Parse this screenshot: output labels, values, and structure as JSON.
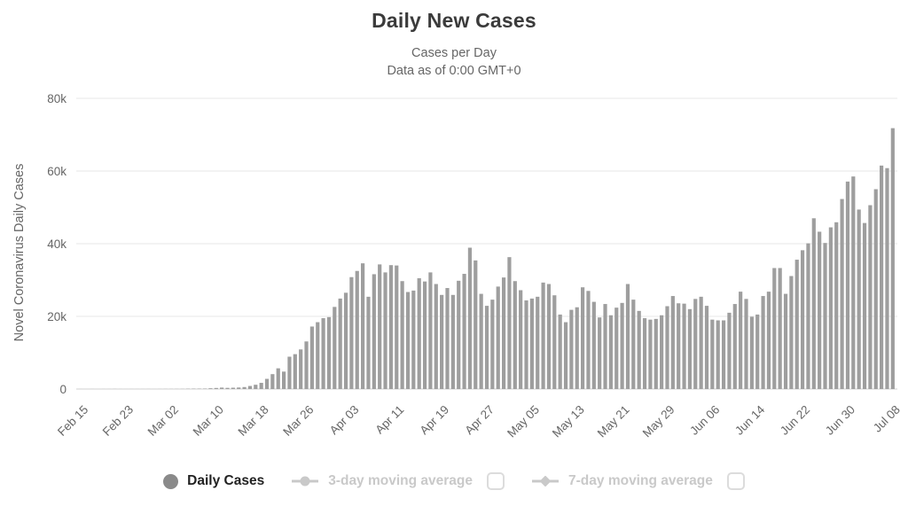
{
  "header": {
    "title": "Daily New Cases",
    "subtitle_line1": "Cases per Day",
    "subtitle_line2": "Data as of 0:00 GMT+0"
  },
  "chart_data": {
    "type": "bar",
    "title": "Daily New Cases",
    "subtitle": [
      "Cases per Day",
      "Data as of 0:00 GMT+0"
    ],
    "ylabel": "Novel Coronavirus Daily Cases",
    "xlabel": "",
    "ylim": [
      0,
      80000
    ],
    "grid": true,
    "y_ticks": [
      {
        "value": 0,
        "label": "0"
      },
      {
        "value": 20000,
        "label": "20k"
      },
      {
        "value": 40000,
        "label": "40k"
      },
      {
        "value": 60000,
        "label": "60k"
      },
      {
        "value": 80000,
        "label": "80k"
      }
    ],
    "x_start_date": "Feb 15",
    "x_end_date": "Jul 08",
    "x_tick_every_days": 8,
    "x_ticks": [
      {
        "index": 0,
        "label": "Feb 15"
      },
      {
        "index": 8,
        "label": "Feb 23"
      },
      {
        "index": 16,
        "label": "Mar 02"
      },
      {
        "index": 24,
        "label": "Mar 10"
      },
      {
        "index": 32,
        "label": "Mar 18"
      },
      {
        "index": 40,
        "label": "Mar 26"
      },
      {
        "index": 48,
        "label": "Apr 03"
      },
      {
        "index": 56,
        "label": "Apr 11"
      },
      {
        "index": 64,
        "label": "Apr 19"
      },
      {
        "index": 72,
        "label": "Apr 27"
      },
      {
        "index": 80,
        "label": "May 05"
      },
      {
        "index": 88,
        "label": "May 13"
      },
      {
        "index": 96,
        "label": "May 21"
      },
      {
        "index": 104,
        "label": "May 29"
      },
      {
        "index": 112,
        "label": "Jun 06"
      },
      {
        "index": 120,
        "label": "Jun 14"
      },
      {
        "index": 128,
        "label": "Jun 22"
      },
      {
        "index": 136,
        "label": "Jun 30"
      },
      {
        "index": 144,
        "label": "Jul 08"
      }
    ],
    "series_name": "Daily Cases",
    "values": [
      8,
      5,
      12,
      6,
      10,
      14,
      28,
      9,
      7,
      15,
      18,
      16,
      19,
      8,
      22,
      30,
      26,
      34,
      40,
      75,
      105,
      110,
      120,
      210,
      290,
      395,
      320,
      360,
      420,
      540,
      840,
      1180,
      1700,
      2800,
      4100,
      5700,
      4800,
      8900,
      9600,
      10900,
      13100,
      17200,
      18400,
      19500,
      19800,
      22600,
      24900,
      26500,
      30800,
      32500,
      34600,
      25400,
      31600,
      34300,
      32100,
      34100,
      34000,
      29700,
      26700,
      27100,
      30500,
      29600,
      32100,
      28900,
      25900,
      27800,
      25900,
      29800,
      31700,
      38900,
      35400,
      26200,
      22900,
      24600,
      28200,
      30700,
      36300,
      29700,
      27200,
      24400,
      24900,
      25400,
      29300,
      28900,
      25800,
      20500,
      18400,
      21800,
      22500,
      28000,
      27000,
      24000,
      19700,
      23400,
      20300,
      22400,
      23700,
      28900,
      24600,
      21500,
      19500,
      19100,
      19300,
      20300,
      22800,
      25600,
      23600,
      23500,
      22000,
      24800,
      25400,
      22900,
      19100,
      18900,
      18900,
      21000,
      23400,
      26800,
      24800,
      19900,
      20500,
      25600,
      26800,
      33300,
      33300,
      26200,
      31100,
      35600,
      38200,
      40100,
      47000,
      43300,
      40200,
      44500,
      45900,
      52300,
      57100,
      58500,
      49400,
      45700,
      50600,
      55000,
      61500,
      60800,
      71800
    ]
  },
  "legend": {
    "items": [
      {
        "label": "Daily Cases",
        "icon": "circle-marker",
        "enabled": true,
        "has_checkbox": false
      },
      {
        "label": "3-day moving average",
        "icon": "line-circle-marker",
        "enabled": false,
        "has_checkbox": true,
        "checked": false
      },
      {
        "label": "7-day moving average",
        "icon": "line-diamond-marker",
        "enabled": false,
        "has_checkbox": true,
        "checked": false
      }
    ]
  },
  "colors": {
    "bar": "#9e9e9e",
    "gridline": "#e7e7e7",
    "baseline": "#d2d2d2",
    "axis_text": "#666666",
    "title": "#3b3b3b",
    "subtitle": "#666666",
    "legend_enabled_text": "#222222",
    "legend_disabled": "#c9c9c9",
    "circle_marker": "#8a8a8a",
    "checkbox_border": "#dcdcdc",
    "background": "#ffffff"
  }
}
